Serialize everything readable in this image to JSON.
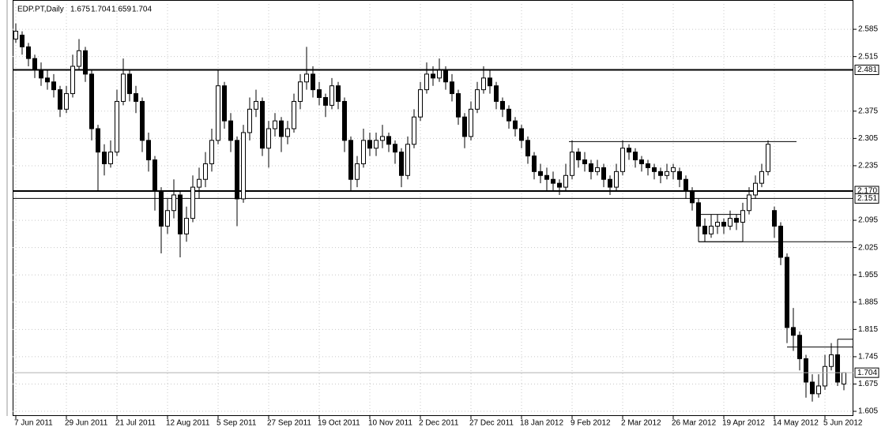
{
  "chart_data": {
    "type": "candlestick",
    "symbol": "EDP.PT,Daily",
    "ylim": [
      1.597,
      2.65
    ],
    "xlim": [
      -0.5,
      132.5
    ],
    "grid": true,
    "yticks": [
      2.585,
      2.515,
      2.375,
      2.305,
      2.235,
      2.095,
      2.025,
      1.955,
      1.885,
      1.815,
      1.745,
      1.675,
      1.605
    ],
    "xticks": [
      {
        "value": 0,
        "label": "7 Jun 2011"
      },
      {
        "value": 8,
        "label": "29 Jun 2011"
      },
      {
        "value": 16,
        "label": "21 Jul 2011"
      },
      {
        "value": 24,
        "label": "12 Aug 2011"
      },
      {
        "value": 32,
        "label": "5 Sep 2011"
      },
      {
        "value": 40,
        "label": "27 Sep 2011"
      },
      {
        "value": 48,
        "label": "19 Oct 2011"
      },
      {
        "value": 56,
        "label": "10 Nov 2011"
      },
      {
        "value": 64,
        "label": "2 Dec 2011"
      },
      {
        "value": 72,
        "label": "27 Dec 2011"
      },
      {
        "value": 80,
        "label": "18 Jan 2012"
      },
      {
        "value": 88,
        "label": "9 Feb 2012"
      },
      {
        "value": 96,
        "label": "2 Mar 2012"
      },
      {
        "value": 104,
        "label": "26 Mar 2012"
      },
      {
        "value": 112,
        "label": "19 Apr 2012"
      },
      {
        "value": 120,
        "label": "14 May 2012"
      },
      {
        "value": 128,
        "label": "5 Jun 2012"
      }
    ],
    "levels": [
      2.481,
      {
        "value": 2.17,
        "label": "2.170"
      },
      2.151
    ],
    "trend_lines": [
      {
        "x": [
          87.5,
          123.5
        ],
        "y": [
          2.297,
          2.297
        ]
      },
      {
        "x": [
          108,
          115
        ],
        "y": [
          2.11,
          2.11
        ]
      },
      {
        "x": [
          108,
          115
        ],
        "y": [
          2.04,
          2.04
        ]
      },
      {
        "x": [
          108,
          108
        ],
        "y": [
          2.04,
          2.11
        ]
      },
      {
        "x": [
          115,
          115
        ],
        "y": [
          2.04,
          2.11
        ]
      },
      {
        "x": [
          108,
          132.5
        ],
        "y": [
          2.04,
          2.04
        ]
      },
      {
        "x": [
          122,
          132.5
        ],
        "y": [
          1.77,
          1.77
        ]
      },
      {
        "x": [
          130,
          132.5
        ],
        "y": [
          1.79,
          1.79
        ]
      },
      {
        "x": [
          130,
          130
        ],
        "y": [
          1.77,
          1.79
        ]
      }
    ],
    "candles": [
      [
        2.56,
        2.6,
        2.55,
        2.58
      ],
      [
        2.57,
        2.58,
        2.52,
        2.54
      ],
      [
        2.54,
        2.55,
        2.49,
        2.51
      ],
      [
        2.51,
        2.52,
        2.46,
        2.48
      ],
      [
        2.48,
        2.5,
        2.44,
        2.46
      ],
      [
        2.46,
        2.48,
        2.43,
        2.45
      ],
      [
        2.45,
        2.47,
        2.41,
        2.43
      ],
      [
        2.43,
        2.44,
        2.36,
        2.38
      ],
      [
        2.38,
        2.44,
        2.37,
        2.42
      ],
      [
        2.42,
        2.52,
        2.41,
        2.49
      ],
      [
        2.49,
        2.56,
        2.48,
        2.53
      ],
      [
        2.53,
        2.54,
        2.45,
        2.47
      ],
      [
        2.47,
        2.48,
        2.3,
        2.33
      ],
      [
        2.33,
        2.34,
        2.17,
        2.27
      ],
      [
        2.27,
        2.29,
        2.21,
        2.24
      ],
      [
        2.24,
        2.3,
        2.23,
        2.27
      ],
      [
        2.27,
        2.43,
        2.26,
        2.4
      ],
      [
        2.4,
        2.51,
        2.39,
        2.47
      ],
      [
        2.47,
        2.48,
        2.4,
        2.42
      ],
      [
        2.42,
        2.44,
        2.37,
        2.4
      ],
      [
        2.4,
        2.41,
        2.27,
        2.3
      ],
      [
        2.3,
        2.32,
        2.22,
        2.25
      ],
      [
        2.25,
        2.26,
        2.12,
        2.17
      ],
      [
        2.17,
        2.18,
        2.01,
        2.08
      ],
      [
        2.08,
        2.15,
        2.06,
        2.12
      ],
      [
        2.12,
        2.2,
        2.1,
        2.16
      ],
      [
        2.16,
        2.17,
        2.0,
        2.06
      ],
      [
        2.06,
        2.13,
        2.04,
        2.1
      ],
      [
        2.1,
        2.21,
        2.09,
        2.18
      ],
      [
        2.18,
        2.23,
        2.15,
        2.2
      ],
      [
        2.2,
        2.27,
        2.18,
        2.24
      ],
      [
        2.24,
        2.33,
        2.22,
        2.3
      ],
      [
        2.3,
        2.48,
        2.29,
        2.44
      ],
      [
        2.44,
        2.45,
        2.33,
        2.35
      ],
      [
        2.35,
        2.37,
        2.27,
        2.3
      ],
      [
        2.3,
        2.31,
        2.08,
        2.15
      ],
      [
        2.15,
        2.34,
        2.14,
        2.32
      ],
      [
        2.32,
        2.41,
        2.3,
        2.38
      ],
      [
        2.38,
        2.43,
        2.36,
        2.4
      ],
      [
        2.4,
        2.41,
        2.26,
        2.28
      ],
      [
        2.28,
        2.35,
        2.23,
        2.33
      ],
      [
        2.33,
        2.37,
        2.31,
        2.35
      ],
      [
        2.35,
        2.36,
        2.27,
        2.31
      ],
      [
        2.31,
        2.35,
        2.29,
        2.33
      ],
      [
        2.33,
        2.42,
        2.32,
        2.4
      ],
      [
        2.4,
        2.47,
        2.38,
        2.45
      ],
      [
        2.45,
        2.54,
        2.43,
        2.47
      ],
      [
        2.47,
        2.49,
        2.41,
        2.43
      ],
      [
        2.43,
        2.45,
        2.39,
        2.41
      ],
      [
        2.41,
        2.42,
        2.36,
        2.39
      ],
      [
        2.39,
        2.46,
        2.38,
        2.44
      ],
      [
        2.44,
        2.45,
        2.38,
        2.4
      ],
      [
        2.4,
        2.41,
        2.27,
        2.3
      ],
      [
        2.3,
        2.31,
        2.17,
        2.2
      ],
      [
        2.2,
        2.26,
        2.18,
        2.24
      ],
      [
        2.24,
        2.33,
        2.23,
        2.3
      ],
      [
        2.3,
        2.32,
        2.26,
        2.28
      ],
      [
        2.28,
        2.32,
        2.26,
        2.3
      ],
      [
        2.3,
        2.34,
        2.28,
        2.31
      ],
      [
        2.31,
        2.32,
        2.27,
        2.29
      ],
      [
        2.29,
        2.3,
        2.24,
        2.27
      ],
      [
        2.27,
        2.28,
        2.18,
        2.21
      ],
      [
        2.21,
        2.31,
        2.2,
        2.29
      ],
      [
        2.29,
        2.38,
        2.28,
        2.36
      ],
      [
        2.36,
        2.45,
        2.35,
        2.43
      ],
      [
        2.43,
        2.5,
        2.42,
        2.47
      ],
      [
        2.47,
        2.49,
        2.44,
        2.46
      ],
      [
        2.46,
        2.51,
        2.45,
        2.48
      ],
      [
        2.48,
        2.49,
        2.43,
        2.45
      ],
      [
        2.45,
        2.47,
        2.4,
        2.42
      ],
      [
        2.42,
        2.43,
        2.34,
        2.36
      ],
      [
        2.36,
        2.37,
        2.28,
        2.31
      ],
      [
        2.31,
        2.4,
        2.3,
        2.38
      ],
      [
        2.38,
        2.45,
        2.37,
        2.43
      ],
      [
        2.43,
        2.49,
        2.42,
        2.46
      ],
      [
        2.46,
        2.48,
        2.42,
        2.44
      ],
      [
        2.44,
        2.45,
        2.38,
        2.4
      ],
      [
        2.4,
        2.41,
        2.36,
        2.38
      ],
      [
        2.38,
        2.39,
        2.33,
        2.35
      ],
      [
        2.35,
        2.36,
        2.31,
        2.33
      ],
      [
        2.33,
        2.34,
        2.28,
        2.3
      ],
      [
        2.3,
        2.31,
        2.24,
        2.26
      ],
      [
        2.26,
        2.27,
        2.2,
        2.22
      ],
      [
        2.22,
        2.24,
        2.19,
        2.21
      ],
      [
        2.21,
        2.23,
        2.17,
        2.2
      ],
      [
        2.2,
        2.22,
        2.17,
        2.19
      ],
      [
        2.19,
        2.2,
        2.16,
        2.18
      ],
      [
        2.18,
        2.24,
        2.17,
        2.21
      ],
      [
        2.21,
        2.3,
        2.2,
        2.27
      ],
      [
        2.27,
        2.28,
        2.23,
        2.25
      ],
      [
        2.25,
        2.27,
        2.22,
        2.24
      ],
      [
        2.24,
        2.25,
        2.2,
        2.22
      ],
      [
        2.22,
        2.25,
        2.21,
        2.23
      ],
      [
        2.23,
        2.24,
        2.18,
        2.2
      ],
      [
        2.2,
        2.21,
        2.16,
        2.18
      ],
      [
        2.18,
        2.24,
        2.17,
        2.22
      ],
      [
        2.22,
        2.3,
        2.21,
        2.28
      ],
      [
        2.28,
        2.29,
        2.25,
        2.27
      ],
      [
        2.27,
        2.28,
        2.23,
        2.25
      ],
      [
        2.25,
        2.26,
        2.22,
        2.24
      ],
      [
        2.24,
        2.25,
        2.21,
        2.23
      ],
      [
        2.23,
        2.24,
        2.2,
        2.22
      ],
      [
        2.22,
        2.23,
        2.19,
        2.21
      ],
      [
        2.21,
        2.24,
        2.2,
        2.22
      ],
      [
        2.22,
        2.24,
        2.2,
        2.23
      ],
      [
        2.22,
        2.23,
        2.18,
        2.2
      ],
      [
        2.2,
        2.21,
        2.15,
        2.17
      ],
      [
        2.17,
        2.18,
        2.12,
        2.14
      ],
      [
        2.14,
        2.15,
        2.04,
        2.08
      ],
      [
        2.08,
        2.1,
        2.04,
        2.06
      ],
      [
        2.06,
        2.11,
        2.05,
        2.08
      ],
      [
        2.08,
        2.11,
        2.06,
        2.09
      ],
      [
        2.09,
        2.1,
        2.06,
        2.08
      ],
      [
        2.08,
        2.12,
        2.07,
        2.1
      ],
      [
        2.1,
        2.11,
        2.07,
        2.09
      ],
      [
        2.09,
        2.14,
        2.08,
        2.12
      ],
      [
        2.12,
        2.18,
        2.11,
        2.16
      ],
      [
        2.16,
        2.21,
        2.15,
        2.19
      ],
      [
        2.19,
        2.24,
        2.18,
        2.22
      ],
      [
        2.22,
        2.3,
        2.21,
        2.29
      ],
      [
        2.12,
        2.13,
        2.05,
        2.08
      ],
      [
        2.08,
        2.09,
        1.98,
        2.0
      ],
      [
        2.0,
        2.01,
        1.78,
        1.82
      ],
      [
        1.82,
        1.87,
        1.76,
        1.8
      ],
      [
        1.8,
        1.81,
        1.71,
        1.74
      ],
      [
        1.74,
        1.75,
        1.64,
        1.68
      ],
      [
        1.68,
        1.7,
        1.63,
        1.65
      ],
      [
        1.65,
        1.7,
        1.64,
        1.67
      ],
      [
        1.67,
        1.75,
        1.66,
        1.72
      ],
      [
        1.72,
        1.78,
        1.71,
        1.75
      ],
      [
        1.75,
        1.77,
        1.67,
        1.68
      ],
      [
        1.675,
        1.704,
        1.659,
        1.704
      ]
    ]
  }
}
